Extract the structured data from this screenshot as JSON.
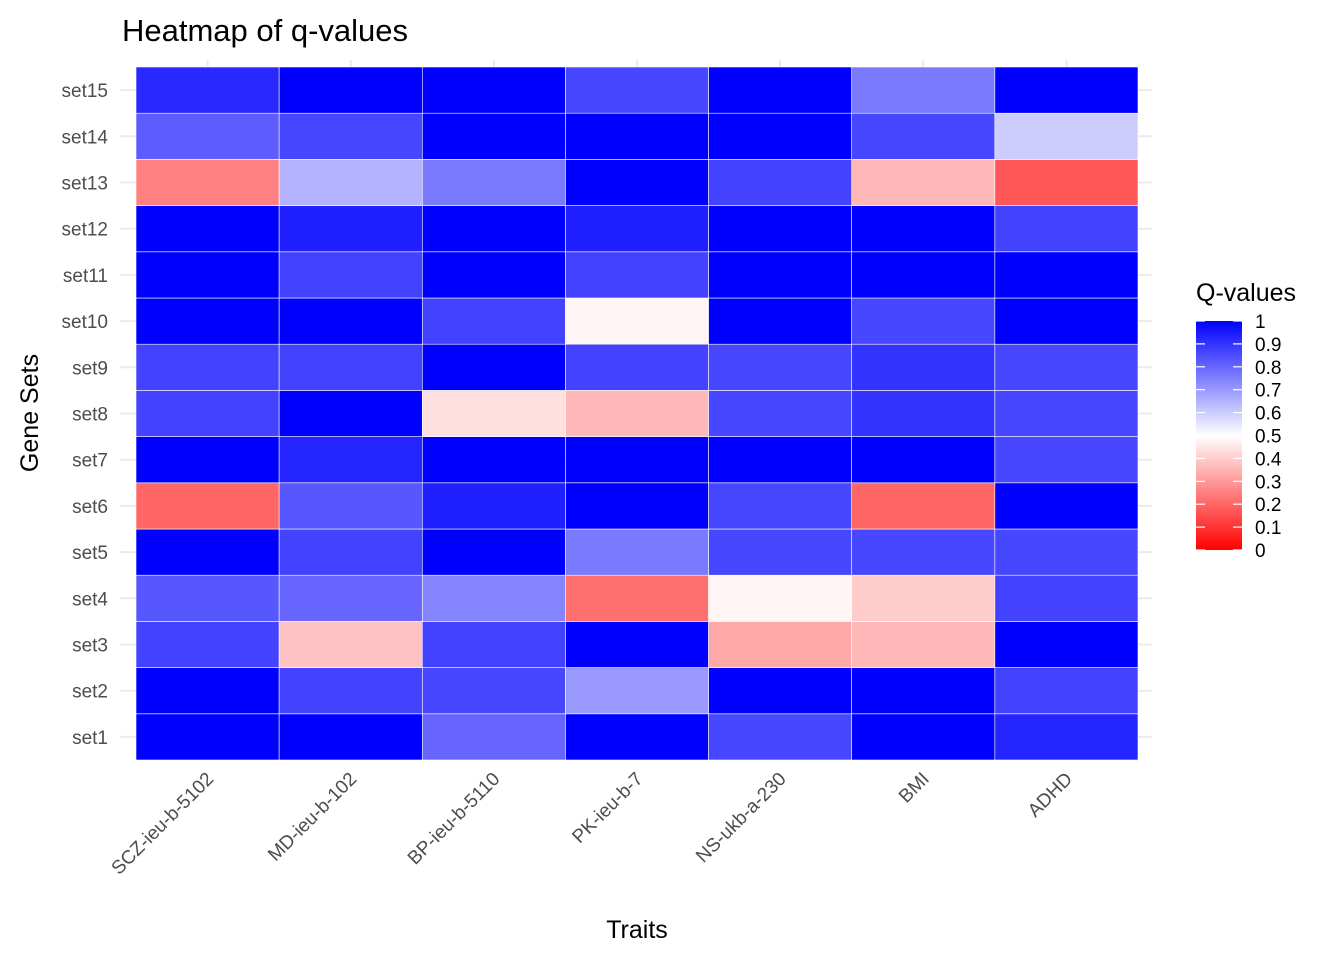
{
  "chart_data": {
    "type": "heatmap",
    "title": "Heatmap of q-values",
    "xlabel": "Traits",
    "ylabel": "Gene Sets",
    "x_categories": [
      "SCZ-ieu-b-5102",
      "MD-ieu-b-102",
      "BP-ieu-b-5110",
      "PK-ieu-b-7",
      "NS-ukb-a-230",
      "BMI",
      "ADHD"
    ],
    "y_categories": [
      "set1",
      "set2",
      "set3",
      "set4",
      "set5",
      "set6",
      "set7",
      "set8",
      "set9",
      "set10",
      "set11",
      "set12",
      "set13",
      "set14",
      "set15"
    ],
    "values": [
      [
        1.0,
        1.0,
        0.8,
        1.0,
        0.86,
        1.0,
        0.93
      ],
      [
        1.0,
        0.87,
        0.86,
        0.7,
        1.0,
        1.0,
        0.87
      ],
      [
        0.87,
        0.38,
        0.87,
        1.0,
        0.33,
        0.36,
        1.0
      ],
      [
        0.83,
        0.8,
        0.74,
        0.22,
        0.48,
        0.4,
        0.87
      ],
      [
        1.0,
        0.87,
        1.0,
        0.76,
        0.86,
        0.86,
        0.86
      ],
      [
        0.2,
        0.83,
        0.94,
        1.0,
        0.86,
        0.2,
        1.0
      ],
      [
        1.0,
        0.93,
        1.0,
        1.0,
        1.0,
        1.0,
        0.86
      ],
      [
        0.87,
        1.0,
        0.44,
        0.36,
        0.86,
        0.9,
        0.86
      ],
      [
        0.87,
        0.87,
        1.0,
        0.87,
        0.86,
        0.9,
        0.86
      ],
      [
        1.0,
        1.0,
        0.87,
        0.48,
        1.0,
        0.86,
        1.0
      ],
      [
        1.0,
        0.87,
        1.0,
        0.87,
        1.0,
        1.0,
        1.0
      ],
      [
        1.0,
        0.94,
        1.0,
        0.94,
        1.0,
        1.0,
        0.87
      ],
      [
        0.25,
        0.65,
        0.76,
        1.0,
        0.87,
        0.36,
        0.17
      ],
      [
        0.82,
        0.86,
        1.0,
        1.0,
        1.0,
        0.86,
        0.6
      ],
      [
        0.92,
        1.0,
        1.0,
        0.86,
        1.0,
        0.76,
        1.0
      ]
    ],
    "legend": {
      "title": "Q-values",
      "ticks": [
        "0",
        "0.1",
        "0.2",
        "0.3",
        "0.4",
        "0.5",
        "0.6",
        "0.7",
        "0.8",
        "0.9",
        "1"
      ],
      "range": [
        0,
        1
      ],
      "placement": "right"
    },
    "colors": {
      "low": "#ff0000",
      "mid": "#ffffff",
      "high": "#0000ff",
      "midpoint": 0.5
    },
    "grid": true
  }
}
